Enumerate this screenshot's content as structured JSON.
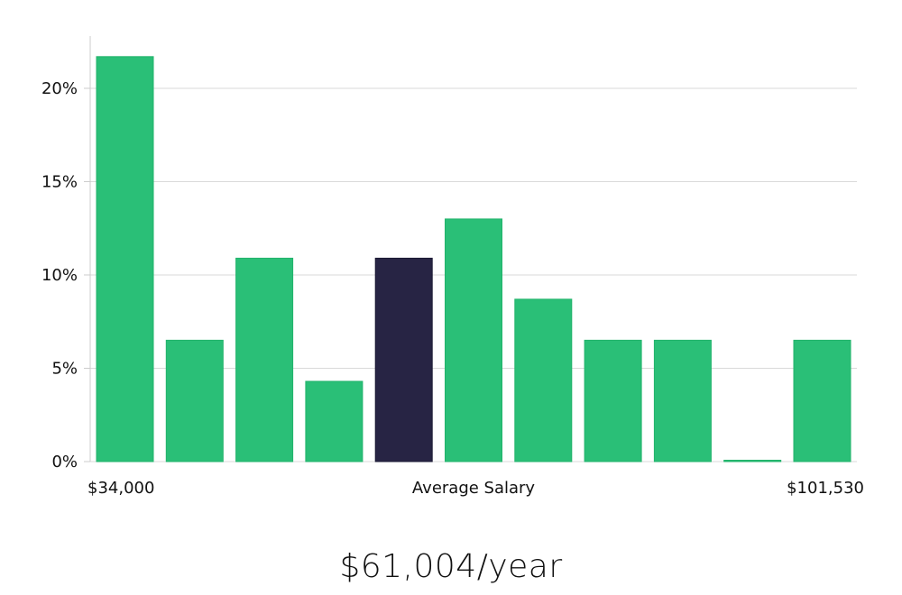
{
  "chart_data": {
    "type": "bar",
    "values": [
      21.7,
      6.5,
      10.9,
      4.3,
      10.9,
      13.0,
      8.7,
      6.5,
      6.5,
      0,
      6.5
    ],
    "highlight_index": 4,
    "ylim": [
      0,
      22.8
    ],
    "yticks": [
      0,
      5,
      10,
      15,
      20
    ],
    "ytick_labels": [
      "0%",
      "5%",
      "10%",
      "15%",
      "20%"
    ],
    "x_labels": {
      "left": "$34,000",
      "center": "Average Salary",
      "right": "$101,530"
    },
    "grid": true,
    "colors": {
      "bar": "#2abf77",
      "highlight": "#272444",
      "grid": "#d9d9d9",
      "axis": "#cccccc"
    }
  },
  "summary": {
    "average_salary": "$61,004/year"
  }
}
